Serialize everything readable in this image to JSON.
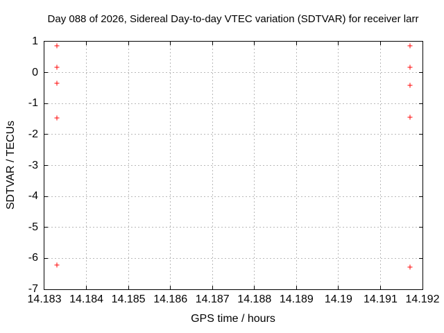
{
  "window": {
    "background": "#ffffff"
  },
  "chart_data": {
    "type": "scatter",
    "title": "Day 088 of 2026, Sidereal Day-to-day VTEC variation (SDTVAR) for receiver larr",
    "xlabel": "GPS time / hours",
    "ylabel": "SDTVAR / TECUs",
    "xlim": [
      14.183,
      14.192
    ],
    "ylim": [
      -7,
      1
    ],
    "grid": "dotted",
    "grid_color": "#b8b8b8",
    "axis_color": "#000000",
    "legend": "none",
    "xticks": [
      {
        "v": 14.183,
        "label": "14.183"
      },
      {
        "v": 14.184,
        "label": "14.184"
      },
      {
        "v": 14.185,
        "label": "14.185"
      },
      {
        "v": 14.186,
        "label": "14.186"
      },
      {
        "v": 14.187,
        "label": "14.187"
      },
      {
        "v": 14.188,
        "label": "14.188"
      },
      {
        "v": 14.189,
        "label": "14.189"
      },
      {
        "v": 14.19,
        "label": "14.19"
      },
      {
        "v": 14.191,
        "label": "14.191"
      },
      {
        "v": 14.192,
        "label": "14.192"
      }
    ],
    "yticks": [
      {
        "v": 1,
        "label": "1"
      },
      {
        "v": 0,
        "label": "0"
      },
      {
        "v": -1,
        "label": "-1"
      },
      {
        "v": -2,
        "label": "-2"
      },
      {
        "v": -3,
        "label": "-3"
      },
      {
        "v": -4,
        "label": "-4"
      },
      {
        "v": -5,
        "label": "-5"
      },
      {
        "v": -6,
        "label": "-6"
      },
      {
        "v": -7,
        "label": "-7"
      }
    ],
    "series": [
      {
        "name": "SDTVAR",
        "marker": "plus",
        "color": "#ff0000",
        "points": [
          [
            14.1833,
            0.87
          ],
          [
            14.1833,
            0.18
          ],
          [
            14.1833,
            -0.35
          ],
          [
            14.1833,
            -1.47
          ],
          [
            14.1833,
            -6.21
          ],
          [
            14.1917,
            0.87
          ],
          [
            14.1917,
            0.18
          ],
          [
            14.1917,
            -0.41
          ],
          [
            14.1917,
            -1.44
          ],
          [
            14.1917,
            -6.29
          ]
        ]
      }
    ]
  }
}
